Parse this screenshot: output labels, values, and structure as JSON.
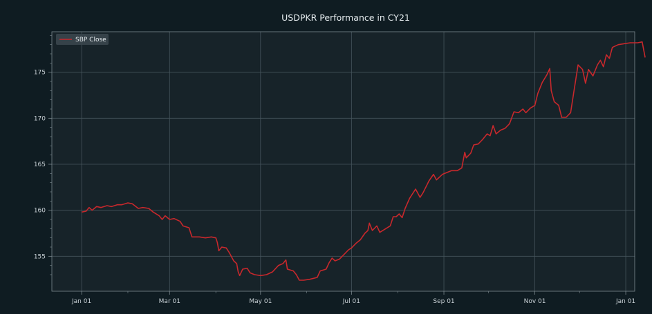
{
  "colors": {
    "background": "#0f1c22",
    "plot_area": "#172329",
    "grid": "#46555c",
    "axis": "#7d8a90",
    "series": "#c8282c",
    "legend_bg": "#3a464c"
  },
  "chart_data": {
    "type": "line",
    "title": "USDPKR Performance in CY21",
    "xlabel": "",
    "ylabel": "",
    "grid": true,
    "legend_position": "top-left",
    "xlim": [
      "2020-12-12",
      "2022-01-07"
    ],
    "ylim": [
      151.2,
      179.4
    ],
    "x_ticks": [
      {
        "date": "2021-01-01",
        "label": "Jan 01"
      },
      {
        "date": "2021-03-01",
        "label": "Mar 01"
      },
      {
        "date": "2021-05-01",
        "label": "May 01"
      },
      {
        "date": "2021-07-01",
        "label": "Jul 01"
      },
      {
        "date": "2021-09-01",
        "label": "Sep 01"
      },
      {
        "date": "2021-11-01",
        "label": "Nov 01"
      },
      {
        "date": "2022-01-01",
        "label": "Jan 01"
      }
    ],
    "y_ticks": [
      155,
      160,
      165,
      170,
      175
    ],
    "series": [
      {
        "name": "SBP Close",
        "points": [
          [
            "2021-01-01",
            159.8
          ],
          [
            "2021-01-04",
            159.9
          ],
          [
            "2021-01-06",
            160.3
          ],
          [
            "2021-01-08",
            160.0
          ],
          [
            "2021-01-11",
            160.4
          ],
          [
            "2021-01-14",
            160.3
          ],
          [
            "2021-01-18",
            160.5
          ],
          [
            "2021-01-21",
            160.4
          ],
          [
            "2021-01-25",
            160.6
          ],
          [
            "2021-01-28",
            160.6
          ],
          [
            "2021-02-01",
            160.8
          ],
          [
            "2021-02-04",
            160.7
          ],
          [
            "2021-02-08",
            160.2
          ],
          [
            "2021-02-11",
            160.3
          ],
          [
            "2021-02-15",
            160.2
          ],
          [
            "2021-02-18",
            159.8
          ],
          [
            "2021-02-22",
            159.4
          ],
          [
            "2021-02-24",
            159.0
          ],
          [
            "2021-02-26",
            159.4
          ],
          [
            "2021-03-01",
            159.0
          ],
          [
            "2021-03-04",
            159.1
          ],
          [
            "2021-03-08",
            158.8
          ],
          [
            "2021-03-10",
            158.3
          ],
          [
            "2021-03-14",
            158.1
          ],
          [
            "2021-03-16",
            157.1
          ],
          [
            "2021-03-21",
            157.1
          ],
          [
            "2021-03-25",
            157.0
          ],
          [
            "2021-03-29",
            157.1
          ],
          [
            "2021-04-01",
            157.0
          ],
          [
            "2021-04-02",
            156.5
          ],
          [
            "2021-04-03",
            155.6
          ],
          [
            "2021-04-05",
            156.0
          ],
          [
            "2021-04-08",
            155.9
          ],
          [
            "2021-04-10",
            155.4
          ],
          [
            "2021-04-13",
            154.5
          ],
          [
            "2021-04-15",
            154.2
          ],
          [
            "2021-04-16",
            153.3
          ],
          [
            "2021-04-17",
            152.9
          ],
          [
            "2021-04-19",
            153.6
          ],
          [
            "2021-04-22",
            153.7
          ],
          [
            "2021-04-24",
            153.2
          ],
          [
            "2021-04-27",
            153.0
          ],
          [
            "2021-05-01",
            152.9
          ],
          [
            "2021-05-05",
            153.0
          ],
          [
            "2021-05-09",
            153.3
          ],
          [
            "2021-05-13",
            154.0
          ],
          [
            "2021-05-16",
            154.2
          ],
          [
            "2021-05-18",
            154.6
          ],
          [
            "2021-05-19",
            153.6
          ],
          [
            "2021-05-23",
            153.4
          ],
          [
            "2021-05-25",
            153.0
          ],
          [
            "2021-05-27",
            152.4
          ],
          [
            "2021-05-30",
            152.4
          ],
          [
            "2021-06-03",
            152.5
          ],
          [
            "2021-06-08",
            152.7
          ],
          [
            "2021-06-10",
            153.4
          ],
          [
            "2021-06-14",
            153.6
          ],
          [
            "2021-06-16",
            154.3
          ],
          [
            "2021-06-18",
            154.8
          ],
          [
            "2021-06-20",
            154.5
          ],
          [
            "2021-06-23",
            154.7
          ],
          [
            "2021-06-26",
            155.2
          ],
          [
            "2021-06-29",
            155.7
          ],
          [
            "2021-07-01",
            155.9
          ],
          [
            "2021-07-04",
            156.4
          ],
          [
            "2021-07-07",
            156.8
          ],
          [
            "2021-07-10",
            157.5
          ],
          [
            "2021-07-12",
            157.8
          ],
          [
            "2021-07-13",
            158.6
          ],
          [
            "2021-07-15",
            157.8
          ],
          [
            "2021-07-18",
            158.3
          ],
          [
            "2021-07-20",
            157.6
          ],
          [
            "2021-07-24",
            158.0
          ],
          [
            "2021-07-27",
            158.3
          ],
          [
            "2021-07-29",
            159.3
          ],
          [
            "2021-07-31",
            159.3
          ],
          [
            "2021-08-02",
            159.6
          ],
          [
            "2021-08-04",
            159.2
          ],
          [
            "2021-08-06",
            160.2
          ],
          [
            "2021-08-09",
            161.3
          ],
          [
            "2021-08-13",
            162.3
          ],
          [
            "2021-08-16",
            161.4
          ],
          [
            "2021-08-18",
            161.9
          ],
          [
            "2021-08-22",
            163.2
          ],
          [
            "2021-08-25",
            163.9
          ],
          [
            "2021-08-27",
            163.3
          ],
          [
            "2021-08-31",
            163.9
          ],
          [
            "2021-09-03",
            164.1
          ],
          [
            "2021-09-06",
            164.3
          ],
          [
            "2021-09-10",
            164.3
          ],
          [
            "2021-09-13",
            164.6
          ],
          [
            "2021-09-15",
            166.3
          ],
          [
            "2021-09-16",
            165.7
          ],
          [
            "2021-09-19",
            166.2
          ],
          [
            "2021-09-21",
            167.1
          ],
          [
            "2021-09-24",
            167.2
          ],
          [
            "2021-09-27",
            167.7
          ],
          [
            "2021-09-30",
            168.3
          ],
          [
            "2021-10-02",
            168.1
          ],
          [
            "2021-10-04",
            169.2
          ],
          [
            "2021-10-06",
            168.3
          ],
          [
            "2021-10-09",
            168.7
          ],
          [
            "2021-10-12",
            168.9
          ],
          [
            "2021-10-15",
            169.4
          ],
          [
            "2021-10-18",
            170.7
          ],
          [
            "2021-10-21",
            170.6
          ],
          [
            "2021-10-24",
            171.0
          ],
          [
            "2021-10-26",
            170.6
          ],
          [
            "2021-10-29",
            171.1
          ],
          [
            "2021-11-01",
            171.4
          ],
          [
            "2021-11-03",
            172.7
          ],
          [
            "2021-11-06",
            173.9
          ],
          [
            "2021-11-09",
            174.7
          ],
          [
            "2021-11-11",
            175.4
          ],
          [
            "2021-11-12",
            173.0
          ],
          [
            "2021-11-14",
            171.8
          ],
          [
            "2021-11-17",
            171.4
          ],
          [
            "2021-11-19",
            170.1
          ],
          [
            "2021-11-22",
            170.1
          ],
          [
            "2021-11-25",
            170.6
          ],
          [
            "2021-11-27",
            172.7
          ],
          [
            "2021-11-30",
            175.8
          ],
          [
            "2021-12-03",
            175.3
          ],
          [
            "2021-12-05",
            173.8
          ],
          [
            "2021-12-07",
            175.3
          ],
          [
            "2021-12-10",
            174.6
          ],
          [
            "2021-12-13",
            175.8
          ],
          [
            "2021-12-15",
            176.3
          ],
          [
            "2021-12-17",
            175.6
          ],
          [
            "2021-12-19",
            176.9
          ],
          [
            "2021-12-21",
            176.5
          ],
          [
            "2021-12-23",
            177.7
          ],
          [
            "2021-12-27",
            178.0
          ],
          [
            "2021-12-31",
            178.1
          ],
          [
            "2022-01-04",
            178.2
          ],
          [
            "2022-01-09",
            178.2
          ],
          [
            "2022-01-12",
            178.3
          ],
          [
            "2022-01-14",
            176.6
          ]
        ]
      }
    ]
  }
}
